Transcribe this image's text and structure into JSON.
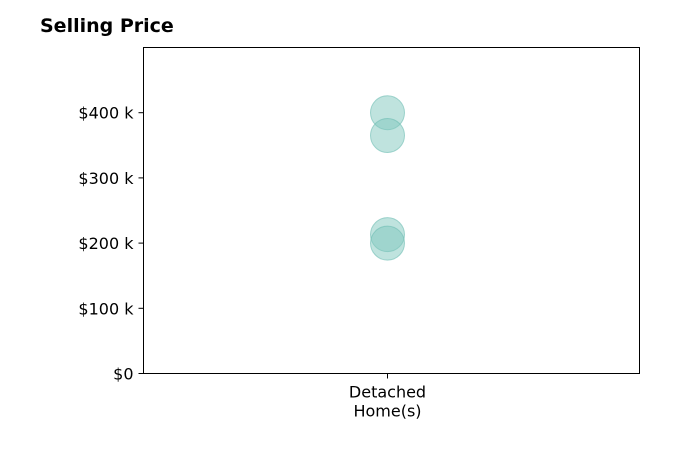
{
  "chart_data": {
    "type": "scatter",
    "title": "Selling Price",
    "xlabel": "",
    "ylabel": "",
    "categories": [
      "Detached\nHome(s)"
    ],
    "series": [
      {
        "category": "Detached\nHome(s)",
        "values": [
          400000,
          365000,
          213000,
          200000
        ]
      }
    ],
    "ylim": [
      0,
      500000
    ],
    "yticks": [
      0,
      100000,
      200000,
      300000,
      400000
    ],
    "ytick_labels": [
      "$0",
      "$100 k",
      "$200 k",
      "$300 k",
      "$400 k"
    ],
    "grid": false,
    "legend": "none",
    "marker_color": "#7fc7bd",
    "marker_edge_color": "#6dbdb2",
    "marker_alpha": 0.5
  }
}
